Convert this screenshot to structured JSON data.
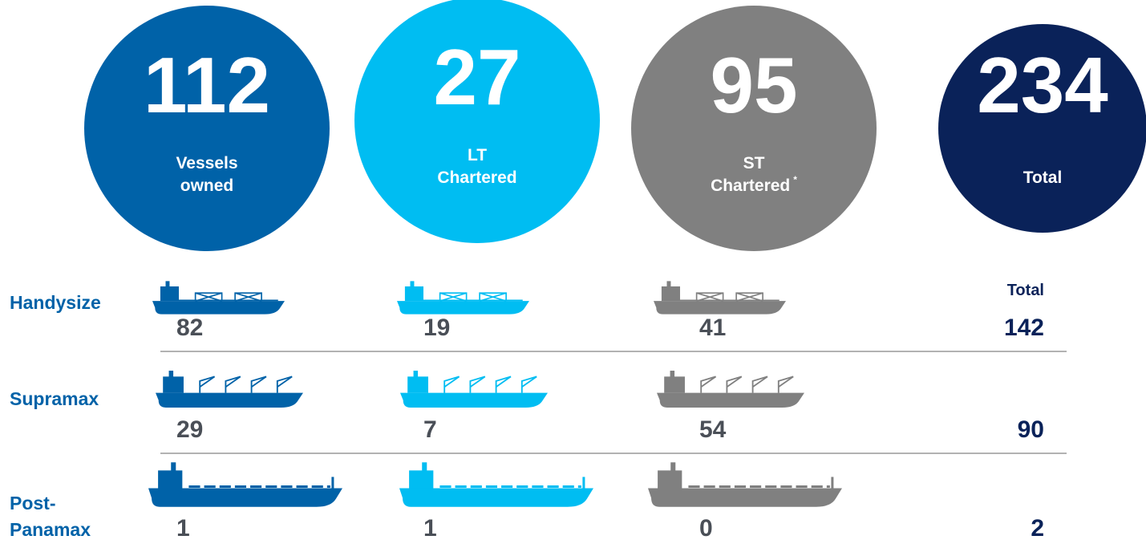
{
  "circles": [
    {
      "number": 112,
      "label": [
        "Vessels",
        "owned"
      ]
    },
    {
      "number": 27,
      "label": [
        "LT",
        "Chartered"
      ]
    },
    {
      "number": 95,
      "label": [
        "ST",
        "Chartered"
      ],
      "note": "*"
    },
    {
      "number": 234,
      "label": [
        "Total"
      ]
    }
  ],
  "total_header": "Total",
  "rows": [
    {
      "name": [
        "Handysize"
      ],
      "values": [
        82,
        19,
        41,
        142
      ]
    },
    {
      "name": [
        "Supramax"
      ],
      "values": [
        29,
        7,
        54,
        90
      ]
    },
    {
      "name": [
        "Post-",
        "Panamax"
      ],
      "values": [
        1,
        1,
        0,
        2
      ]
    }
  ]
}
